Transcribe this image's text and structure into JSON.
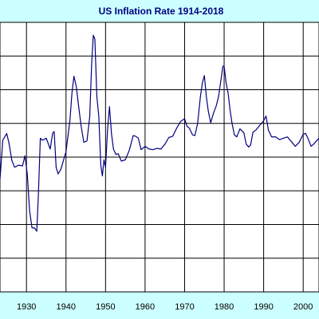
{
  "colors": {
    "background": "#ccffff",
    "plot_area": "#ffffff",
    "line": "#000080",
    "grid": "#000000",
    "title": "#000080"
  },
  "chart_data": {
    "type": "line",
    "title": "US Inflation Rate 1914-2018",
    "xlabel": "",
    "ylabel": "",
    "x_ticks": [
      1930,
      1940,
      1950,
      1960,
      1970,
      1980,
      1990,
      2000
    ],
    "xlim": [
      1923.3,
      2004
    ],
    "ylim": [
      -20,
      20
    ],
    "y_grid": [
      -15,
      -10,
      -5,
      0,
      5,
      10,
      15
    ],
    "grid": true,
    "series": [
      {
        "name": "",
        "x": [
          1923.3,
          1924,
          1925,
          1925.6,
          1926.3,
          1927,
          1928,
          1929,
          1929.6,
          1930.2,
          1930.8,
          1931.4,
          1932,
          1932.6,
          1933,
          1933.5,
          1934,
          1935,
          1936,
          1936.6,
          1937,
          1937.5,
          1938,
          1938.7,
          1939.3,
          1940,
          1941,
          1941.5,
          1942,
          1942.6,
          1943.2,
          1943.8,
          1944.5,
          1945.3,
          1946,
          1946.5,
          1946.9,
          1947.3,
          1947.8,
          1948.3,
          1948.8,
          1949.2,
          1949.6,
          1950,
          1950.5,
          1951,
          1951.5,
          1952,
          1952.6,
          1953.2,
          1954,
          1955,
          1956,
          1957,
          1957.6,
          1958.3,
          1959,
          1960,
          1961,
          1962,
          1963,
          1964,
          1965,
          1966,
          1967,
          1968,
          1969,
          1970,
          1970.6,
          1971.2,
          1972,
          1972.6,
          1973.3,
          1974,
          1974.5,
          1975,
          1975.5,
          1976,
          1976.6,
          1977.3,
          1978,
          1978.6,
          1979.2,
          1979.7,
          1980,
          1980.5,
          1981,
          1981.5,
          1982,
          1982.6,
          1983.2,
          1984,
          1985,
          1985.6,
          1986.2,
          1986.7,
          1987.3,
          1988,
          1989,
          1990,
          1990.6,
          1991.2,
          1992,
          1993,
          1994,
          1995,
          1996,
          1997,
          1998,
          1999,
          2000,
          2000.6,
          2001.2,
          2002,
          2002.6,
          2003.2,
          2004
        ],
        "y": [
          -3.3,
          2.5,
          3.5,
          2,
          -0.5,
          -1.5,
          -1.2,
          -1.3,
          0.2,
          -2.5,
          -8,
          -10.5,
          -10.5,
          -11,
          -5.8,
          2.8,
          2.5,
          2.8,
          1.2,
          3.5,
          3.8,
          -1.5,
          -2.5,
          -1.8,
          -0.6,
          0.8,
          5.5,
          9.5,
          12,
          10.5,
          7.5,
          4.7,
          2.2,
          2.4,
          6,
          14,
          18.1,
          17.5,
          9,
          6,
          -1.2,
          -2.8,
          -0.4,
          -1.5,
          4,
          7.5,
          3.5,
          1.2,
          0.4,
          0.5,
          -0.6,
          -0.4,
          1,
          3.2,
          3.1,
          2.8,
          1.1,
          1.6,
          1.2,
          1.1,
          1.3,
          1.2,
          1.9,
          2.9,
          3.1,
          4.3,
          5.3,
          5.7,
          4.6,
          4.3,
          3.3,
          3.2,
          5,
          9,
          11,
          12.1,
          9,
          6.8,
          5.1,
          6.5,
          7.6,
          9,
          11.5,
          13.5,
          13.5,
          11,
          9.5,
          7,
          5,
          3.3,
          3,
          4.2,
          3.6,
          1.9,
          1.5,
          1.8,
          3.7,
          4,
          4.7,
          5.4,
          6.1,
          4,
          3,
          3,
          2.6,
          2.8,
          3,
          2.3,
          1.6,
          2.2,
          3.4,
          3.5,
          2.8,
          1.6,
          1.9,
          2.3,
          2.8
        ]
      }
    ]
  }
}
